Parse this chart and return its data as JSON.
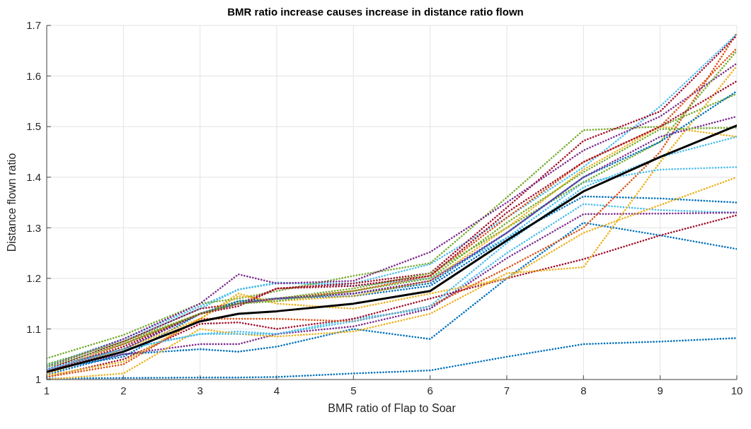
{
  "chart_data": {
    "type": "line",
    "title": "BMR ratio increase causes increase in distance ratio flown",
    "xlabel": "BMR ratio of Flap to Soar",
    "ylabel": "Distance flown ratio",
    "x": [
      1,
      2,
      3,
      3.5,
      4,
      5,
      6,
      7,
      8,
      9,
      10
    ],
    "xlim": [
      1,
      10
    ],
    "xticks": [
      1,
      2,
      3,
      4,
      5,
      6,
      7,
      8,
      9,
      10
    ],
    "ylim": [
      1,
      1.7
    ],
    "yticks": [
      1,
      1.1,
      1.2,
      1.3,
      1.4,
      1.5,
      1.6,
      1.7
    ],
    "grid": true,
    "marker": "none",
    "series": [
      {
        "color": "#0072bd",
        "line_style": "dotted",
        "values": [
          1.002,
          1.003,
          1.004,
          1.004,
          1.005,
          1.012,
          1.018,
          1.045,
          1.07,
          1.075,
          1.082
        ]
      },
      {
        "color": "#0072bd",
        "line_style": "dotted",
        "values": [
          1.01,
          1.05,
          1.06,
          1.055,
          1.065,
          1.1,
          1.08,
          1.2,
          1.31,
          1.285,
          1.258
        ]
      },
      {
        "color": "#0072bd",
        "line_style": "dotted",
        "values": [
          1.02,
          1.045,
          1.13,
          1.15,
          1.16,
          1.165,
          1.185,
          1.28,
          1.362,
          1.358,
          1.35
        ]
      },
      {
        "color": "#4dbeee",
        "line_style": "dotted",
        "values": [
          1.025,
          1.06,
          1.09,
          1.095,
          1.09,
          1.12,
          1.14,
          1.25,
          1.347,
          1.335,
          1.33
        ]
      },
      {
        "color": "#7e2f8e",
        "line_style": "dotted",
        "values": [
          1.02,
          1.05,
          1.07,
          1.07,
          1.09,
          1.105,
          1.14,
          1.24,
          1.327,
          1.328,
          1.33
        ]
      },
      {
        "color": "#a2142f",
        "line_style": "dotted",
        "values": [
          1.005,
          1.04,
          1.11,
          1.113,
          1.1,
          1.12,
          1.16,
          1.2,
          1.238,
          1.285,
          1.325
        ]
      },
      {
        "color": "#edb120",
        "line_style": "dotted",
        "values": [
          1,
          1.012,
          1.1,
          1.09,
          1.085,
          1.095,
          1.13,
          1.21,
          1.222,
          1.43,
          1.62
        ]
      },
      {
        "color": "#d95319",
        "line_style": "dotted",
        "values": [
          1.005,
          1.03,
          1.12,
          1.12,
          1.12,
          1.115,
          1.145,
          1.22,
          1.3,
          1.45,
          1.685
        ]
      },
      {
        "color": "#edb120",
        "line_style": "dotted",
        "values": [
          1.008,
          1.035,
          1.12,
          1.17,
          1.15,
          1.14,
          1.17,
          1.2,
          1.29,
          1.345,
          1.4
        ]
      },
      {
        "color": "#4dbeee",
        "line_style": "dotted",
        "values": [
          1.03,
          1.075,
          1.14,
          1.178,
          1.192,
          1.185,
          1.2,
          1.28,
          1.39,
          1.415,
          1.42
        ]
      },
      {
        "color": "#4dbeee",
        "line_style": "dotted",
        "values": [
          1.028,
          1.08,
          1.145,
          1.178,
          1.19,
          1.19,
          1.228,
          1.32,
          1.42,
          1.54,
          1.683
        ]
      },
      {
        "color": "#77ac30",
        "line_style": "dotted",
        "values": [
          1.042,
          1.088,
          1.15,
          1.16,
          1.175,
          1.205,
          1.23,
          1.36,
          1.493,
          1.5,
          1.565
        ]
      },
      {
        "color": "#a2142f",
        "line_style": "dotted",
        "values": [
          1.02,
          1.075,
          1.14,
          1.15,
          1.18,
          1.19,
          1.21,
          1.34,
          1.472,
          1.53,
          1.68
        ]
      },
      {
        "color": "#7e2f8e",
        "line_style": "dotted",
        "values": [
          1.025,
          1.08,
          1.15,
          1.208,
          1.19,
          1.195,
          1.252,
          1.35,
          1.453,
          1.52,
          1.625
        ]
      },
      {
        "color": "#d95319",
        "line_style": "dotted",
        "values": [
          1.015,
          1.07,
          1.13,
          1.15,
          1.16,
          1.175,
          1.205,
          1.32,
          1.43,
          1.5,
          1.655
        ]
      },
      {
        "color": "#77ac30",
        "line_style": "dotted",
        "values": [
          1.03,
          1.075,
          1.13,
          1.155,
          1.16,
          1.18,
          1.21,
          1.3,
          1.39,
          1.47,
          1.65
        ]
      },
      {
        "color": "#0072bd",
        "line_style": "dotted",
        "values": [
          1.02,
          1.06,
          1.13,
          1.155,
          1.16,
          1.17,
          1.19,
          1.29,
          1.4,
          1.47,
          1.57
        ]
      },
      {
        "color": "#edb120",
        "line_style": "dotted",
        "values": [
          1.012,
          1.06,
          1.12,
          1.165,
          1.155,
          1.165,
          1.195,
          1.3,
          1.415,
          1.5,
          1.48
        ]
      },
      {
        "color": "#7e2f8e",
        "line_style": "dotted",
        "values": [
          1.018,
          1.06,
          1.13,
          1.15,
          1.16,
          1.17,
          1.195,
          1.29,
          1.4,
          1.48,
          1.52
        ]
      },
      {
        "color": "#a2142f",
        "line_style": "dotted",
        "values": [
          1.015,
          1.065,
          1.13,
          1.145,
          1.18,
          1.185,
          1.205,
          1.33,
          1.43,
          1.5,
          1.59
        ]
      },
      {
        "color": "#4dbeee",
        "line_style": "dotted",
        "values": [
          1.02,
          1.06,
          1.09,
          1.09,
          1.09,
          1.115,
          1.145,
          1.27,
          1.38,
          1.44,
          1.48
        ]
      },
      {
        "color": "#77ac30",
        "line_style": "dotted",
        "values": [
          1.025,
          1.07,
          1.13,
          1.15,
          1.155,
          1.175,
          1.2,
          1.31,
          1.41,
          1.495,
          1.498
        ]
      },
      {
        "color": "#000000",
        "line_style": "solid",
        "values": [
          1.015,
          1.055,
          1.115,
          1.13,
          1.135,
          1.15,
          1.175,
          1.275,
          1.372,
          1.44,
          1.502
        ]
      }
    ]
  }
}
